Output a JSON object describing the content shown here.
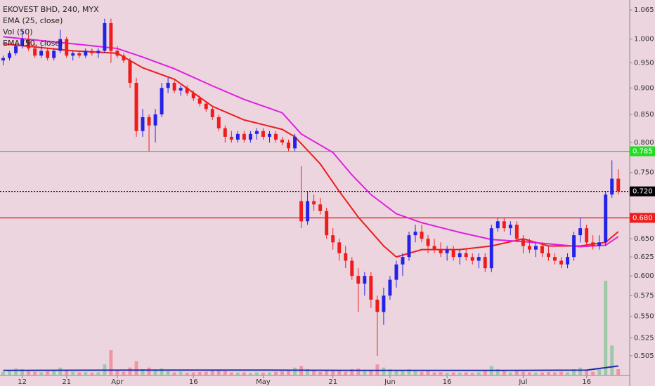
{
  "chart_data": {
    "type": "candlestick",
    "title": "EKOVEST BHD, 240, MYX",
    "log_scale": true,
    "up_color": "#2323e8",
    "down_color": "#ee1c1c",
    "xlim": [
      -0.5,
      98.8
    ],
    "xticks": [
      {
        "value": 3,
        "label": "12"
      },
      {
        "value": 10,
        "label": "21"
      },
      {
        "value": 18,
        "label": "Apr"
      },
      {
        "value": 30,
        "label": "16"
      },
      {
        "value": 41,
        "label": "May"
      },
      {
        "value": 52,
        "label": "21"
      },
      {
        "value": 61,
        "label": "Jun"
      },
      {
        "value": 70,
        "label": "16"
      },
      {
        "value": 82,
        "label": "Jul"
      },
      {
        "value": 92,
        "label": "16"
      }
    ],
    "ylim": [
      0.484,
      1.088
    ],
    "yticks": [
      {
        "value": 0.505,
        "label": "0.505"
      },
      {
        "value": 0.525,
        "label": "0.525"
      },
      {
        "value": 0.55,
        "label": "0.550"
      },
      {
        "value": 0.575,
        "label": "0.575"
      },
      {
        "value": 0.6,
        "label": "0.600"
      },
      {
        "value": 0.625,
        "label": "0.625"
      },
      {
        "value": 0.65,
        "label": "0.650"
      },
      {
        "value": 0.75,
        "label": "0.750"
      },
      {
        "value": 0.8,
        "label": "0.800"
      },
      {
        "value": 0.85,
        "label": "0.850"
      },
      {
        "value": 0.9,
        "label": "0.900"
      },
      {
        "value": 0.95,
        "label": "0.950"
      },
      {
        "value": 1.0,
        "label": "1.000"
      },
      {
        "value": 1.065,
        "label": "1.065"
      }
    ],
    "ohlc": [
      [
        0.955,
        0.965,
        0.945,
        0.96
      ],
      [
        0.96,
        0.975,
        0.955,
        0.97
      ],
      [
        0.97,
        0.99,
        0.965,
        0.985
      ],
      [
        0.985,
        1.02,
        0.98,
        1.0
      ],
      [
        1.0,
        1.01,
        0.975,
        0.98
      ],
      [
        0.98,
        0.99,
        0.96,
        0.965
      ],
      [
        0.965,
        0.985,
        0.96,
        0.975
      ],
      [
        0.975,
        0.98,
        0.955,
        0.96
      ],
      [
        0.96,
        0.98,
        0.955,
        0.975
      ],
      [
        0.975,
        1.02,
        0.97,
        1.0
      ],
      [
        1.0,
        1.005,
        0.96,
        0.965
      ],
      [
        0.965,
        0.975,
        0.955,
        0.97
      ],
      [
        0.97,
        0.975,
        0.96,
        0.965
      ],
      [
        0.965,
        0.98,
        0.96,
        0.975
      ],
      [
        0.975,
        0.98,
        0.965,
        0.97
      ],
      [
        0.97,
        0.98,
        0.96,
        0.975
      ],
      [
        0.975,
        1.045,
        0.97,
        1.035
      ],
      [
        1.035,
        1.045,
        0.95,
        0.975
      ],
      [
        0.975,
        0.985,
        0.96,
        0.965
      ],
      [
        0.965,
        0.97,
        0.95,
        0.955
      ],
      [
        0.955,
        0.96,
        0.9,
        0.91
      ],
      [
        0.91,
        0.92,
        0.81,
        0.82
      ],
      [
        0.82,
        0.86,
        0.81,
        0.845
      ],
      [
        0.845,
        0.85,
        0.785,
        0.83
      ],
      [
        0.83,
        0.86,
        0.8,
        0.85
      ],
      [
        0.85,
        0.91,
        0.845,
        0.9
      ],
      [
        0.9,
        0.92,
        0.89,
        0.91
      ],
      [
        0.91,
        0.915,
        0.89,
        0.895
      ],
      [
        0.895,
        0.905,
        0.885,
        0.9
      ],
      [
        0.9,
        0.905,
        0.885,
        0.89
      ],
      [
        0.89,
        0.895,
        0.875,
        0.88
      ],
      [
        0.88,
        0.885,
        0.865,
        0.87
      ],
      [
        0.87,
        0.875,
        0.855,
        0.86
      ],
      [
        0.86,
        0.865,
        0.84,
        0.845
      ],
      [
        0.845,
        0.85,
        0.82,
        0.825
      ],
      [
        0.825,
        0.83,
        0.8,
        0.81
      ],
      [
        0.81,
        0.82,
        0.8,
        0.805
      ],
      [
        0.805,
        0.82,
        0.8,
        0.815
      ],
      [
        0.815,
        0.82,
        0.8,
        0.805
      ],
      [
        0.805,
        0.82,
        0.8,
        0.815
      ],
      [
        0.815,
        0.825,
        0.805,
        0.82
      ],
      [
        0.82,
        0.825,
        0.805,
        0.81
      ],
      [
        0.81,
        0.82,
        0.8,
        0.815
      ],
      [
        0.815,
        0.82,
        0.8,
        0.805
      ],
      [
        0.805,
        0.81,
        0.795,
        0.8
      ],
      [
        0.8,
        0.805,
        0.785,
        0.79
      ],
      [
        0.79,
        0.815,
        0.785,
        0.81
      ],
      [
        0.705,
        0.76,
        0.665,
        0.675
      ],
      [
        0.675,
        0.72,
        0.67,
        0.705
      ],
      [
        0.705,
        0.715,
        0.69,
        0.7
      ],
      [
        0.7,
        0.71,
        0.685,
        0.69
      ],
      [
        0.69,
        0.695,
        0.65,
        0.655
      ],
      [
        0.655,
        0.665,
        0.635,
        0.645
      ],
      [
        0.645,
        0.65,
        0.62,
        0.63
      ],
      [
        0.63,
        0.64,
        0.61,
        0.62
      ],
      [
        0.62,
        0.625,
        0.595,
        0.6
      ],
      [
        0.6,
        0.61,
        0.555,
        0.59
      ],
      [
        0.59,
        0.605,
        0.575,
        0.6
      ],
      [
        0.6,
        0.605,
        0.56,
        0.57
      ],
      [
        0.57,
        0.575,
        0.505,
        0.555
      ],
      [
        0.555,
        0.585,
        0.54,
        0.575
      ],
      [
        0.575,
        0.6,
        0.57,
        0.595
      ],
      [
        0.595,
        0.62,
        0.585,
        0.615
      ],
      [
        0.615,
        0.63,
        0.6,
        0.625
      ],
      [
        0.625,
        0.66,
        0.62,
        0.655
      ],
      [
        0.655,
        0.67,
        0.645,
        0.66
      ],
      [
        0.66,
        0.67,
        0.645,
        0.65
      ],
      [
        0.65,
        0.655,
        0.63,
        0.64
      ],
      [
        0.64,
        0.65,
        0.63,
        0.635
      ],
      [
        0.635,
        0.645,
        0.625,
        0.63
      ],
      [
        0.63,
        0.64,
        0.62,
        0.635
      ],
      [
        0.635,
        0.64,
        0.62,
        0.625
      ],
      [
        0.625,
        0.635,
        0.615,
        0.63
      ],
      [
        0.63,
        0.635,
        0.62,
        0.625
      ],
      [
        0.625,
        0.63,
        0.615,
        0.62
      ],
      [
        0.62,
        0.63,
        0.61,
        0.625
      ],
      [
        0.625,
        0.63,
        0.605,
        0.61
      ],
      [
        0.61,
        0.67,
        0.605,
        0.665
      ],
      [
        0.665,
        0.68,
        0.66,
        0.675
      ],
      [
        0.675,
        0.68,
        0.66,
        0.665
      ],
      [
        0.665,
        0.675,
        0.655,
        0.67
      ],
      [
        0.67,
        0.675,
        0.645,
        0.65
      ],
      [
        0.65,
        0.655,
        0.63,
        0.64
      ],
      [
        0.64,
        0.65,
        0.63,
        0.635
      ],
      [
        0.635,
        0.645,
        0.625,
        0.64
      ],
      [
        0.64,
        0.645,
        0.625,
        0.63
      ],
      [
        0.63,
        0.64,
        0.62,
        0.625
      ],
      [
        0.625,
        0.63,
        0.615,
        0.62
      ],
      [
        0.62,
        0.625,
        0.61,
        0.615
      ],
      [
        0.615,
        0.63,
        0.61,
        0.625
      ],
      [
        0.625,
        0.66,
        0.62,
        0.655
      ],
      [
        0.655,
        0.68,
        0.645,
        0.665
      ],
      [
        0.665,
        0.67,
        0.64,
        0.645
      ],
      [
        0.645,
        0.655,
        0.635,
        0.64
      ],
      [
        0.64,
        0.655,
        0.635,
        0.645
      ],
      [
        0.645,
        0.72,
        0.64,
        0.715
      ],
      [
        0.715,
        0.77,
        0.71,
        0.74
      ],
      [
        0.74,
        0.755,
        0.715,
        0.72
      ]
    ],
    "volume": {
      "name": "Vol (50)",
      "up_color": "#8fc79f",
      "down_color": "#f08a9a",
      "values": [
        1.2,
        1.5,
        2.2,
        2.0,
        1.4,
        1.2,
        1.0,
        1.3,
        1.5,
        2.5,
        1.8,
        1.2,
        1.0,
        1.1,
        0.9,
        1.0,
        3.5,
        8.0,
        1.5,
        1.2,
        2.5,
        4.5,
        2.0,
        2.5,
        1.8,
        2.2,
        1.4,
        1.0,
        1.2,
        0.9,
        1.0,
        1.1,
        1.2,
        1.5,
        1.6,
        1.4,
        1.0,
        0.9,
        1.0,
        0.8,
        1.0,
        0.9,
        1.0,
        1.2,
        1.3,
        1.5,
        2.5,
        3.0,
        2.0,
        1.5,
        1.2,
        1.8,
        1.6,
        1.5,
        1.2,
        2.0,
        2.2,
        1.5,
        1.8,
        3.5,
        2.5,
        2.0,
        1.8,
        1.5,
        2.0,
        1.5,
        1.2,
        1.4,
        1.0,
        1.1,
        0.9,
        1.0,
        0.9,
        1.0,
        0.8,
        1.0,
        1.5,
        3.0,
        2.0,
        1.4,
        1.0,
        1.5,
        1.2,
        1.0,
        0.9,
        1.0,
        1.1,
        1.0,
        1.2,
        1.0,
        2.0,
        2.5,
        1.5,
        1.2,
        2.0,
        30.0,
        9.5,
        2.0
      ]
    },
    "series": [
      {
        "name": "EMA (25, close)",
        "color": "#ee1c1c",
        "x": [
          0,
          11,
          18,
          22,
          27,
          33,
          38,
          44,
          46,
          50,
          53,
          56,
          60,
          62,
          66,
          72,
          77,
          82,
          86,
          91,
          95,
          97
        ],
        "values": [
          0.99,
          0.975,
          0.97,
          0.94,
          0.917,
          0.865,
          0.84,
          0.823,
          0.81,
          0.764,
          0.72,
          0.681,
          0.64,
          0.625,
          0.635,
          0.635,
          0.64,
          0.65,
          0.64,
          0.64,
          0.645,
          0.66
        ]
      },
      {
        "name": "EMA (50, close)",
        "color": "#e020e0",
        "x": [
          0,
          11,
          18,
          22,
          27,
          33,
          38,
          44,
          47,
          52,
          55,
          58,
          62,
          66,
          72,
          77,
          82,
          86,
          91,
          95,
          97
        ],
        "values": [
          1.005,
          0.99,
          0.98,
          0.962,
          0.938,
          0.904,
          0.878,
          0.853,
          0.815,
          0.783,
          0.746,
          0.715,
          0.686,
          0.673,
          0.659,
          0.649,
          0.646,
          0.643,
          0.639,
          0.641,
          0.653
        ]
      }
    ],
    "volume_ma": {
      "color": "#1a2ab0",
      "x": [
        0,
        20,
        40,
        60,
        80,
        92,
        97
      ],
      "values": [
        1.6,
        1.7,
        1.7,
        1.6,
        1.6,
        1.7,
        3.0
      ]
    },
    "levels": [
      {
        "value": 0.785,
        "label": "0.785",
        "color": "#22dd22",
        "dash": false
      },
      {
        "value": 0.72,
        "label": "0.720",
        "color": "#000000",
        "dash": true
      },
      {
        "value": 0.68,
        "label": "0.680",
        "color": "#ee1c1c",
        "dash": false
      }
    ]
  }
}
